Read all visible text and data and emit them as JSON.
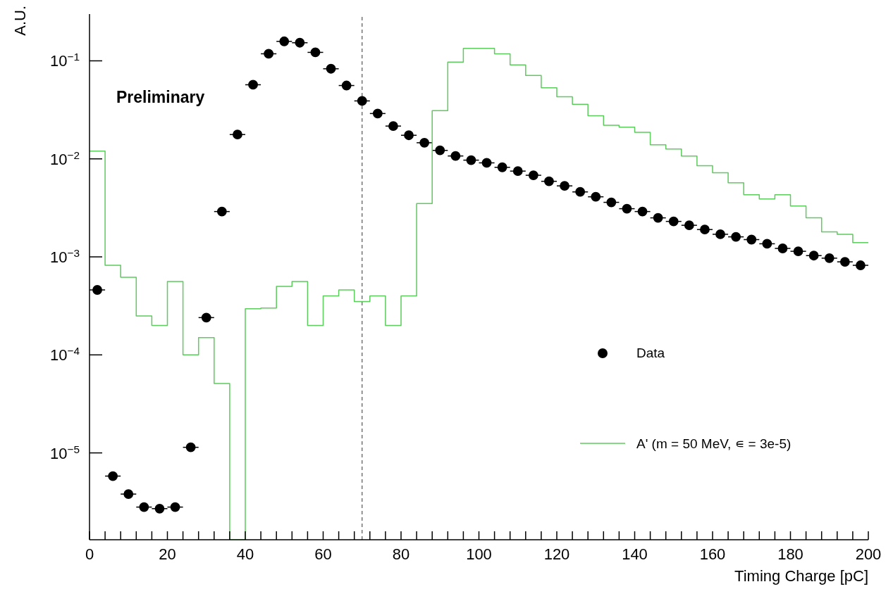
{
  "chart_data": {
    "type": "scatter",
    "xlabel": "Timing Charge [pC]",
    "ylabel": "A.U.",
    "annotations": [
      "Preliminary"
    ],
    "log": "y",
    "legend": "right",
    "marker": "circle",
    "xlim": [
      0,
      200
    ],
    "ylim": [
      1.3e-06,
      0.3
    ],
    "xticks": [
      0,
      {
        "value": 4,
        "label": null
      },
      {
        "value": 8,
        "label": null
      },
      {
        "value": 12,
        "label": null
      },
      {
        "value": 16,
        "label": null
      },
      20,
      {
        "value": 24,
        "label": null
      },
      {
        "value": 28,
        "label": null
      },
      {
        "value": 32,
        "label": null
      },
      {
        "value": 36,
        "label": null
      },
      40,
      {
        "value": 44,
        "label": null
      },
      {
        "value": 48,
        "label": null
      },
      {
        "value": 52,
        "label": null
      },
      {
        "value": 56,
        "label": null
      },
      60,
      {
        "value": 64,
        "label": null
      },
      {
        "value": 68,
        "label": null
      },
      {
        "value": 72,
        "label": null
      },
      {
        "value": 76,
        "label": null
      },
      80,
      {
        "value": 84,
        "label": null
      },
      {
        "value": 88,
        "label": null
      },
      {
        "value": 92,
        "label": null
      },
      {
        "value": 96,
        "label": null
      },
      100,
      {
        "value": 104,
        "label": null
      },
      {
        "value": 108,
        "label": null
      },
      {
        "value": 112,
        "label": null
      },
      {
        "value": 116,
        "label": null
      },
      120,
      {
        "value": 124,
        "label": null
      },
      {
        "value": 128,
        "label": null
      },
      {
        "value": 132,
        "label": null
      },
      {
        "value": 136,
        "label": null
      },
      140,
      {
        "value": 144,
        "label": null
      },
      {
        "value": 148,
        "label": null
      },
      {
        "value": 152,
        "label": null
      },
      {
        "value": 156,
        "label": null
      },
      160,
      {
        "value": 164,
        "label": null
      },
      {
        "value": 168,
        "label": null
      },
      {
        "value": 172,
        "label": null
      },
      {
        "value": 176,
        "label": null
      },
      180,
      {
        "value": 184,
        "label": null
      },
      {
        "value": 188,
        "label": null
      },
      {
        "value": 192,
        "label": null
      },
      {
        "value": 196,
        "label": null
      },
      200
    ],
    "yticks": [
      {
        "value": 1e-05,
        "label": "10$^{−5}$"
      },
      {
        "value": 0.0001,
        "label": "10$^{−4}$"
      },
      {
        "value": 0.001,
        "label": "10$^{−3}$"
      },
      {
        "value": 0.01,
        "label": "10$^{−2}$"
      },
      {
        "value": 0.1,
        "label": "10$^{−1}$"
      }
    ],
    "ref_lines": [
      {
        "axis": "x",
        "value": 70,
        "label": null,
        "color": "#555555",
        "line_style": "dashed"
      }
    ],
    "series": [
      {
        "name": "Data",
        "type": "scatter",
        "color": "#000000",
        "x": [
          2,
          6,
          10,
          14,
          18,
          22,
          26,
          30,
          34,
          38,
          42,
          46,
          50,
          54,
          58,
          62,
          66,
          70,
          74,
          78,
          82,
          86,
          90,
          94,
          98,
          102,
          106,
          110,
          114,
          118,
          122,
          126,
          130,
          134,
          138,
          142,
          146,
          150,
          154,
          158,
          162,
          166,
          170,
          174,
          178,
          182,
          186,
          190,
          194,
          198
        ],
        "values": [
          0.00046,
          5.8e-06,
          3.8e-06,
          2.8e-06,
          2.7e-06,
          2.8e-06,
          1.14e-05,
          0.00024,
          0.0029,
          0.0177,
          0.057,
          0.118,
          0.158,
          0.153,
          0.122,
          0.083,
          0.056,
          0.039,
          0.029,
          0.0216,
          0.0174,
          0.0146,
          0.0122,
          0.0107,
          0.0097,
          0.0091,
          0.0082,
          0.0075,
          0.0068,
          0.0059,
          0.0053,
          0.0046,
          0.0041,
          0.0036,
          0.0031,
          0.0029,
          0.0025,
          0.0023,
          0.0021,
          0.0019,
          0.0017,
          0.0016,
          0.0015,
          0.00136,
          0.00122,
          0.00114,
          0.00103,
          0.00097,
          0.00089,
          0.00082
        ],
        "xerrors": [
          2,
          2,
          2,
          2,
          2,
          2,
          2,
          2,
          2,
          2,
          2,
          2,
          2,
          2,
          2,
          2,
          2,
          2,
          2,
          2,
          2,
          2,
          2,
          2,
          2,
          2,
          2,
          2,
          2,
          2,
          2,
          2,
          2,
          2,
          2,
          2,
          2,
          2,
          2,
          2,
          2,
          2,
          2,
          2,
          2,
          2,
          2,
          2,
          2,
          2
        ]
      },
      {
        "name": "A' (m = 50 MeV, ∊ = 3e-5)",
        "type": "histogram",
        "color": "#5ccc5c",
        "bins": [
          0,
          4,
          8,
          12,
          16,
          20,
          24,
          28,
          32,
          36,
          40,
          44,
          48,
          52,
          56,
          60,
          64,
          68,
          72,
          76,
          80,
          84,
          88,
          92,
          96,
          100,
          104,
          108,
          112,
          116,
          120,
          124,
          128,
          132,
          136,
          140,
          144,
          148,
          152,
          156,
          160,
          164,
          168,
          172,
          176,
          180,
          184,
          188,
          192,
          196,
          200
        ],
        "values": [
          0.012,
          0.00082,
          0.00062,
          0.00025,
          0.0002,
          0.00056,
          0.0001,
          0.00015,
          5.1e-05,
          null,
          0.000296,
          0.0003,
          0.0005,
          0.00056,
          0.0002,
          0.0004,
          0.00046,
          0.00035,
          0.0004,
          0.0002,
          0.0004,
          0.0035,
          0.031,
          0.097,
          0.134,
          0.134,
          0.118,
          0.091,
          0.071,
          0.053,
          0.043,
          0.036,
          0.0275,
          0.022,
          0.021,
          0.0187,
          0.0139,
          0.0126,
          0.0107,
          0.0085,
          0.0072,
          0.0057,
          0.0043,
          0.0039,
          0.0043,
          0.0033,
          0.0025,
          0.0018,
          0.0017,
          0.0014
        ]
      }
    ]
  }
}
